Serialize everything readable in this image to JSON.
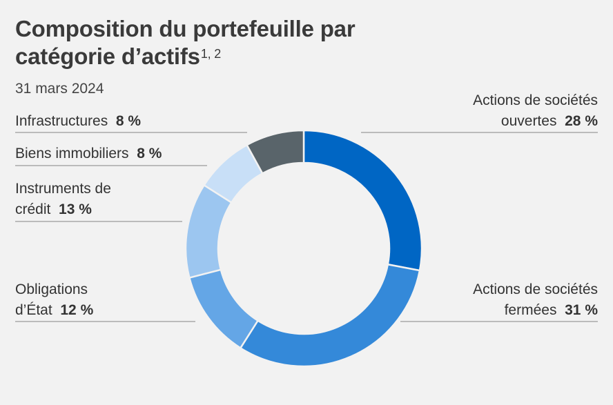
{
  "header": {
    "title_line1": "Composition du portefeuille par",
    "title_line2": "catégorie d’actifs",
    "title_sup": "1, 2",
    "subtitle": "31 mars 2024"
  },
  "chart_data": {
    "type": "pie",
    "variant": "donut",
    "legend": "none",
    "slices": [
      {
        "label_line1": "Actions de sociétés",
        "label_line2": "ouvertes",
        "value": 28,
        "value_text": "28 %",
        "color": "#0066c4"
      },
      {
        "label_line1": "Actions de sociétés",
        "label_line2": "fermées",
        "value": 31,
        "value_text": "31 %",
        "color": "#3489d9"
      },
      {
        "label_line1": "Obligations",
        "label_line2": "d’État",
        "value": 12,
        "value_text": "12 %",
        "color": "#64a6e6"
      },
      {
        "label_line1": "Instruments de",
        "label_line2": "crédit",
        "value": 13,
        "value_text": "13 %",
        "color": "#9cc6f0"
      },
      {
        "label_line1": "",
        "label_line2": "Biens immobiliers",
        "value": 8,
        "value_text": "8 %",
        "color": "#c8dff7"
      },
      {
        "label_line1": "",
        "label_line2": "Infrastructures",
        "value": 8,
        "value_text": "8 %",
        "color": "#59646a"
      }
    ]
  }
}
